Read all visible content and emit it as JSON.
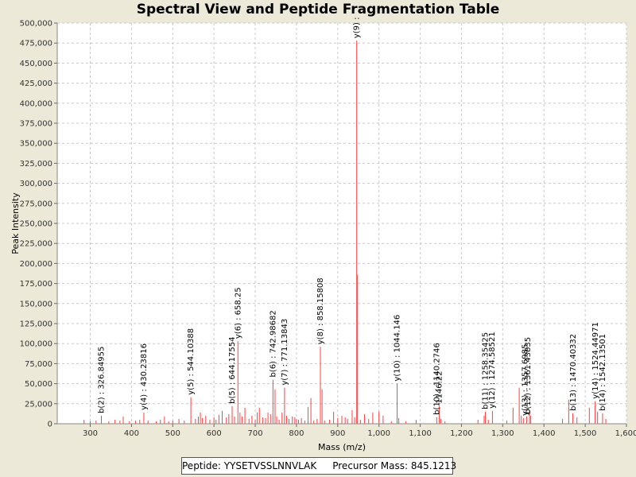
{
  "chart_data": {
    "type": "spectrum",
    "title": "Spectral View and Peptide Fragmentation Table",
    "xlabel": "Mass (m/z)",
    "ylabel": "Peak Intensity",
    "xlim": [
      220,
      1600
    ],
    "ylim": [
      0,
      500000
    ],
    "x_ticks": [
      300,
      400,
      500,
      600,
      700,
      800,
      900,
      1000,
      1100,
      1200,
      1300,
      1400,
      1500,
      1600
    ],
    "x_tick_labels": [
      "300",
      "400",
      "500",
      "600",
      "700",
      "800",
      "900",
      "1,000",
      "1,100",
      "1,200",
      "1,300",
      "1,400",
      "1,500",
      "1,600"
    ],
    "y_ticks": [
      0,
      25000,
      50000,
      75000,
      100000,
      125000,
      150000,
      175000,
      200000,
      225000,
      250000,
      275000,
      300000,
      325000,
      350000,
      375000,
      400000,
      425000,
      450000,
      475000,
      500000
    ],
    "y_tick_labels": [
      "0",
      "25,000",
      "50,000",
      "75,000",
      "100,000",
      "125,000",
      "150,000",
      "175,000",
      "200,000",
      "225,000",
      "250,000",
      "275,000",
      "300,000",
      "325,000",
      "350,000",
      "375,000",
      "400,000",
      "425,000",
      "450,000",
      "475,000",
      "500,000"
    ],
    "grid": true,
    "peaks": [
      [
        285,
        5000
      ],
      [
        300,
        3000
      ],
      [
        314,
        4000
      ],
      [
        327,
        10000
      ],
      [
        345,
        3000
      ],
      [
        360,
        5000
      ],
      [
        372,
        4000
      ],
      [
        380,
        9000
      ],
      [
        395,
        3000
      ],
      [
        410,
        4000
      ],
      [
        420,
        5000
      ],
      [
        430,
        14000
      ],
      [
        440,
        4000
      ],
      [
        460,
        3000
      ],
      [
        470,
        5000
      ],
      [
        480,
        9000
      ],
      [
        490,
        3000
      ],
      [
        500,
        4000
      ],
      [
        515,
        6000
      ],
      [
        528,
        4000
      ],
      [
        544,
        33000
      ],
      [
        555,
        6000
      ],
      [
        562,
        9000
      ],
      [
        567,
        14000
      ],
      [
        572,
        7000
      ],
      [
        580,
        10000
      ],
      [
        590,
        5000
      ],
      [
        600,
        8000
      ],
      [
        605,
        5000
      ],
      [
        612,
        11000
      ],
      [
        620,
        16000
      ],
      [
        630,
        8000
      ],
      [
        636,
        12000
      ],
      [
        644,
        22000
      ],
      [
        650,
        9000
      ],
      [
        658,
        103000
      ],
      [
        663,
        14000
      ],
      [
        668,
        9000
      ],
      [
        675,
        20000
      ],
      [
        685,
        6000
      ],
      [
        692,
        10000
      ],
      [
        700,
        5000
      ],
      [
        705,
        14000
      ],
      [
        710,
        20000
      ],
      [
        718,
        8000
      ],
      [
        725,
        7000
      ],
      [
        731,
        14000
      ],
      [
        737,
        12000
      ],
      [
        743,
        55000
      ],
      [
        748,
        43000
      ],
      [
        752,
        9000
      ],
      [
        758,
        5000
      ],
      [
        765,
        14000
      ],
      [
        771,
        45000
      ],
      [
        776,
        10000
      ],
      [
        782,
        6000
      ],
      [
        790,
        9000
      ],
      [
        796,
        8000
      ],
      [
        800,
        6000
      ],
      [
        805,
        5000
      ],
      [
        812,
        7000
      ],
      [
        820,
        4000
      ],
      [
        828,
        21000
      ],
      [
        835,
        32000
      ],
      [
        842,
        4000
      ],
      [
        850,
        6000
      ],
      [
        858,
        96000
      ],
      [
        862,
        43000
      ],
      [
        868,
        4000
      ],
      [
        880,
        5000
      ],
      [
        890,
        15000
      ],
      [
        900,
        7000
      ],
      [
        910,
        10000
      ],
      [
        918,
        8000
      ],
      [
        924,
        6000
      ],
      [
        935,
        17000
      ],
      [
        941,
        8000
      ],
      [
        946,
        478000
      ],
      [
        948,
        186000
      ],
      [
        955,
        5000
      ],
      [
        965,
        12000
      ],
      [
        975,
        6000
      ],
      [
        985,
        14000
      ],
      [
        1000,
        15000
      ],
      [
        1010,
        10000
      ],
      [
        1030,
        3000
      ],
      [
        1044,
        50000
      ],
      [
        1048,
        7000
      ],
      [
        1065,
        3000
      ],
      [
        1090,
        5000
      ],
      [
        1140,
        8000
      ],
      [
        1146,
        22000
      ],
      [
        1150,
        6000
      ],
      [
        1160,
        3000
      ],
      [
        1240,
        5000
      ],
      [
        1255,
        10000
      ],
      [
        1258,
        15000
      ],
      [
        1265,
        5000
      ],
      [
        1275,
        16000
      ],
      [
        1310,
        4000
      ],
      [
        1325,
        20000
      ],
      [
        1340,
        45000
      ],
      [
        1345,
        10000
      ],
      [
        1350,
        7000
      ],
      [
        1358,
        9000
      ],
      [
        1365,
        17000
      ],
      [
        1368,
        10000
      ],
      [
        1445,
        6000
      ],
      [
        1460,
        30000
      ],
      [
        1470,
        13000
      ],
      [
        1480,
        8000
      ],
      [
        1510,
        20000
      ],
      [
        1524,
        28000
      ],
      [
        1530,
        15000
      ],
      [
        1542,
        13000
      ],
      [
        1550,
        6000
      ]
    ],
    "annotations": [
      {
        "mz": 326.84955,
        "text": "b(2) : 326.84955"
      },
      {
        "mz": 430.23816,
        "text": "y(4) : 430.23816"
      },
      {
        "mz": 544.10388,
        "text": "y(5) : 544.10388"
      },
      {
        "mz": 644.17554,
        "text": "b(5) : 644.17554"
      },
      {
        "mz": 658.25,
        "text": "y(6) : 658.25"
      },
      {
        "mz": 742.98682,
        "text": "b(6) : 742.98682"
      },
      {
        "mz": 771.13843,
        "text": "y(7) : 771.13843"
      },
      {
        "mz": 858.15808,
        "text": "y(8) : 858.15808"
      },
      {
        "mz": 946.0,
        "text": "y(9) :"
      },
      {
        "mz": 1044.146,
        "text": "y(10) : 1044.146"
      },
      {
        "mz": 1140.0,
        "text": "b(10) : 1140.2746"
      },
      {
        "mz": 1146.0,
        "text": "1146.22"
      },
      {
        "mz": 1258.35425,
        "text": "b(11) : 1258.35425"
      },
      {
        "mz": 1274.58521,
        "text": "y(12) : 1274.58521"
      },
      {
        "mz": 1354.0,
        "text": "y(13) : 1357.6985"
      },
      {
        "mz": 1361.0,
        "text": "b(12) : 1361.43835"
      },
      {
        "mz": 1470.40332,
        "text": "b(13) : 1470.40332"
      },
      {
        "mz": 1524.44971,
        "text": "y(14) : 1524.44971"
      },
      {
        "mz": 1542.13501,
        "text": "b(14) : 1542.13501"
      }
    ]
  },
  "footer": {
    "peptide": "Peptide: YYSETVSSLNNVLAK",
    "precursor": "Precursor Mass: 845.1213"
  }
}
